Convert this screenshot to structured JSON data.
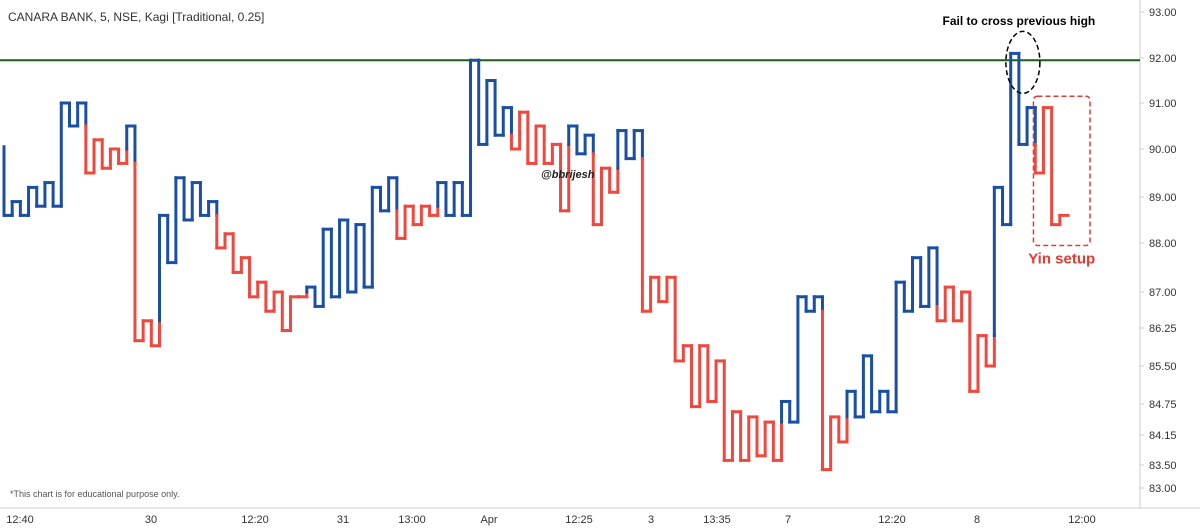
{
  "title": "CANARA BANK, 5, NSE, Kagi [Traditional, 0.25]",
  "watermark": "@bbrijesh",
  "footnote": "*This chart is for educational purpose only.",
  "colors": {
    "yang": "#1a4fa3",
    "yin": "#f0483e",
    "resistance": "#1f5c1f",
    "annotation_circle": "#000000",
    "annotation_box": "#e53935",
    "axis_text": "#333333",
    "axis_line": "#cccccc"
  },
  "annotations": {
    "resistance_level": 91.95,
    "fail_text": "Fail to cross previous high",
    "yin_text": "Yin setup"
  },
  "chart_data": {
    "type": "kagi",
    "title": "CANARA BANK, 5, NSE, Kagi [Traditional, 0.25]",
    "y_axis": {
      "position": "right",
      "ticks": [
        93.0,
        92.0,
        91.0,
        90.0,
        89.0,
        88.0,
        87.0,
        86.25,
        85.5,
        84.75,
        84.15,
        83.5,
        83.0
      ],
      "tick_labels": [
        "93.00",
        "92.00",
        "91.00",
        "90.00",
        "89.00",
        "88.00",
        "87.00",
        "86.25",
        "85.50",
        "84.75",
        "84.15",
        "83.50",
        "83.00"
      ]
    },
    "x_axis": {
      "labels": [
        "12:40",
        "30",
        "12:20",
        "31",
        "13:00",
        "Apr",
        "12:25",
        "3",
        "13:35",
        "7",
        "12:20",
        "8",
        "12:00"
      ]
    },
    "grid": false,
    "kagi": {
      "start_thick": true,
      "points": [
        90.05,
        88.6,
        88.9,
        88.6,
        89.2,
        88.8,
        89.3,
        88.8,
        91.0,
        90.5,
        91.0,
        89.5,
        90.2,
        89.6,
        90.0,
        89.7,
        90.5,
        86.0,
        86.4,
        85.9,
        88.6,
        87.6,
        89.4,
        88.5,
        89.3,
        88.6,
        88.9,
        87.9,
        88.2,
        87.4,
        87.7,
        86.9,
        87.2,
        86.6,
        87.0,
        86.2,
        86.9,
        86.9,
        87.1,
        86.7,
        88.3,
        86.9,
        88.5,
        87.0,
        88.4,
        87.1,
        89.2,
        88.7,
        89.4,
        88.1,
        88.8,
        88.4,
        88.8,
        88.6,
        89.3,
        88.6,
        89.3,
        88.6,
        91.95,
        90.1,
        91.5,
        90.3,
        90.9,
        90.0,
        90.8,
        89.7,
        90.5,
        89.7,
        90.1,
        88.7,
        90.5,
        89.9,
        90.3,
        88.4,
        89.6,
        89.1,
        90.4,
        89.8,
        90.4,
        86.6,
        87.3,
        86.8,
        87.3,
        85.6,
        85.9,
        84.7,
        85.9,
        84.8,
        85.6,
        83.6,
        84.6,
        83.6,
        84.5,
        83.7,
        84.4,
        83.6,
        84.8,
        84.4,
        86.9,
        86.6,
        86.9,
        83.4,
        84.5,
        84.0,
        85.0,
        84.5,
        85.7,
        84.6,
        85.0,
        84.6,
        87.2,
        86.6,
        87.7,
        86.7,
        87.9,
        86.4,
        87.1,
        86.4,
        87.0,
        85.0,
        86.1,
        85.5,
        89.2,
        88.4,
        92.1,
        90.1,
        90.9,
        89.5,
        90.9,
        88.4,
        88.6
      ]
    }
  }
}
